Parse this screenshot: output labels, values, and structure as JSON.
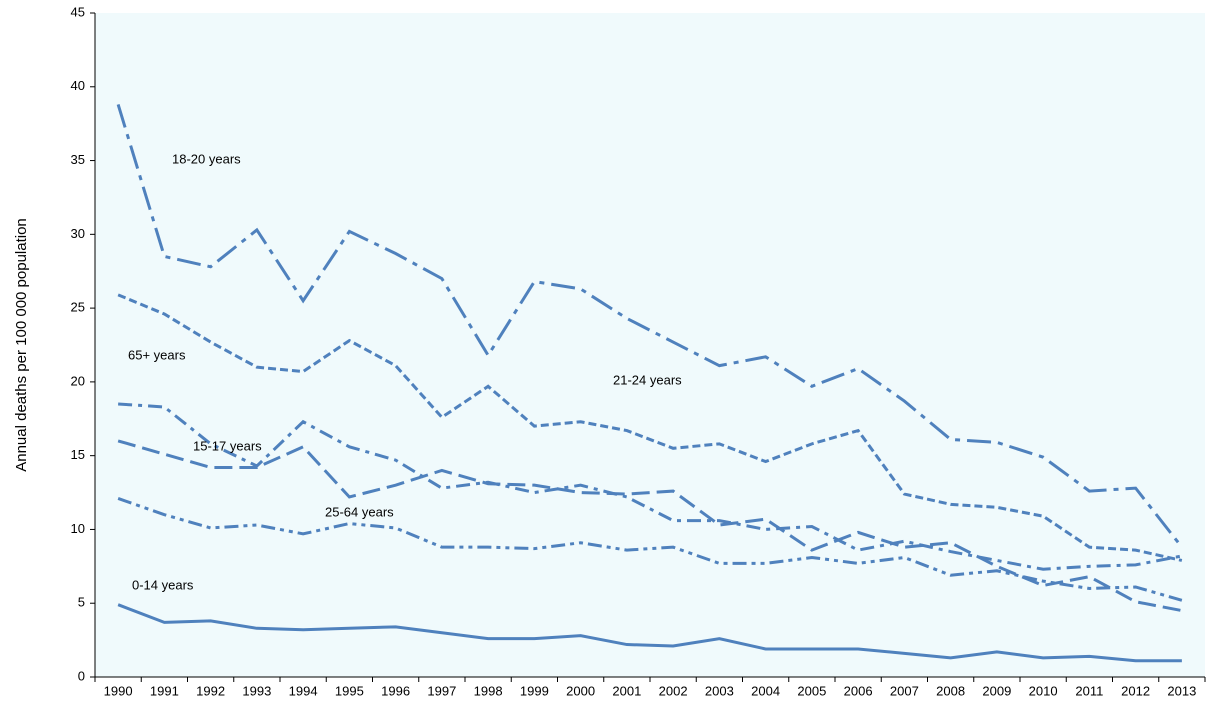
{
  "chart_data": {
    "type": "line",
    "y_label": "Annual deaths  per  100 000 population",
    "categories": [
      "1990",
      "1991",
      "1992",
      "1993",
      "1994",
      "1995",
      "1996",
      "1997",
      "1998",
      "1999",
      "2000",
      "2001",
      "2002",
      "2003",
      "2004",
      "2005",
      "2006",
      "2007",
      "2008",
      "2009",
      "2010",
      "2011",
      "2012",
      "2013"
    ],
    "ylim": [
      0,
      45
    ],
    "yticks": [
      0,
      5,
      10,
      15,
      20,
      25,
      30,
      35,
      40,
      45
    ],
    "background": "#f0fafc",
    "series": [
      {
        "name": "18-20 years",
        "color": "#4f81bd",
        "dash": "long-dash-dot",
        "values": [
          38.8,
          28.5,
          27.8,
          30.3,
          25.5,
          30.2,
          28.7,
          27.0,
          21.8,
          26.8,
          26.3,
          24.3,
          22.7,
          21.1,
          21.7,
          19.7,
          20.9,
          18.7,
          16.1,
          15.9,
          14.9,
          12.6,
          12.8,
          8.8
        ]
      },
      {
        "name": "21-24 years",
        "color": "#4f81bd",
        "dash": "short-dash",
        "values": [
          25.9,
          24.6,
          22.7,
          21.0,
          20.7,
          22.8,
          21.1,
          17.6,
          19.7,
          17.0,
          17.3,
          16.7,
          15.5,
          15.8,
          14.6,
          15.8,
          16.7,
          12.4,
          11.7,
          11.5,
          10.9,
          8.8,
          8.6,
          7.9
        ]
      },
      {
        "name": "65+ years",
        "color": "#4f81bd",
        "dash": "dash-dot",
        "values": [
          18.5,
          18.3,
          15.8,
          14.3,
          17.3,
          15.6,
          14.7,
          12.8,
          13.2,
          12.5,
          13.0,
          12.2,
          10.6,
          10.6,
          10.0,
          10.2,
          8.6,
          9.2,
          8.5,
          7.9,
          7.3,
          7.5,
          7.6,
          8.2
        ]
      },
      {
        "name": "15-17 years",
        "color": "#4f81bd",
        "dash": "long-dash",
        "values": [
          16.0,
          15.1,
          14.2,
          14.2,
          15.6,
          12.2,
          13.0,
          14.0,
          13.1,
          13.0,
          12.5,
          12.4,
          12.6,
          10.3,
          10.7,
          8.6,
          9.8,
          8.8,
          9.1,
          7.5,
          6.2,
          6.8,
          5.1,
          4.5
        ]
      },
      {
        "name": "25-64 years",
        "color": "#4f81bd",
        "dash": "dash-dot-dot",
        "values": [
          12.1,
          11.0,
          10.1,
          10.3,
          9.7,
          10.4,
          10.1,
          8.8,
          8.8,
          8.7,
          9.1,
          8.6,
          8.8,
          7.7,
          7.7,
          8.1,
          7.7,
          8.1,
          6.9,
          7.2,
          6.5,
          6.0,
          6.1,
          5.2
        ]
      },
      {
        "name": "0-14 years",
        "color": "#4f81bd",
        "dash": "solid",
        "values": [
          4.9,
          3.7,
          3.8,
          3.3,
          3.2,
          3.3,
          3.4,
          3.0,
          2.6,
          2.6,
          2.8,
          2.2,
          2.1,
          2.6,
          1.9,
          1.9,
          1.9,
          1.6,
          1.3,
          1.7,
          1.3,
          1.4,
          1.1,
          1.1
        ]
      }
    ]
  }
}
